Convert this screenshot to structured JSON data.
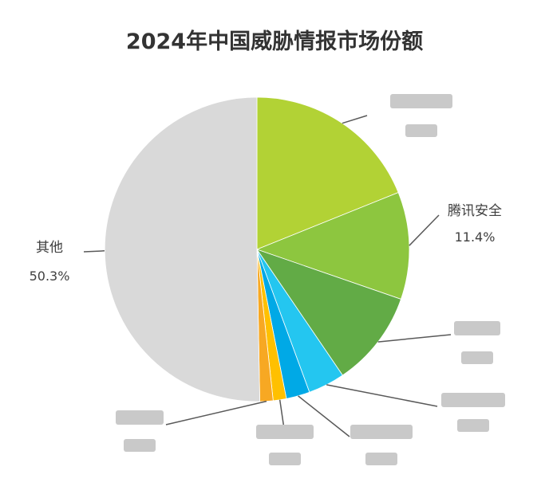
{
  "chart_data": {
    "type": "pie",
    "title": "2024年中国威胁情报市场份额",
    "slices": [
      {
        "label": "",
        "value": 18.9,
        "color": "#b2d235",
        "display": "",
        "obscured": true
      },
      {
        "label": "腾讯安全",
        "value": 11.4,
        "color": "#8dc63f",
        "display": "11.4%",
        "obscured": false
      },
      {
        "label": "",
        "value": 10.2,
        "color": "#62ab46",
        "display": "",
        "obscured": true
      },
      {
        "label": "",
        "value": 3.9,
        "color": "#24c6f0",
        "display": "",
        "obscured": true
      },
      {
        "label": "",
        "value": 2.5,
        "color": "#00a9e6",
        "display": "",
        "obscured": true
      },
      {
        "label": "",
        "value": 1.4,
        "color": "#ffc000",
        "display": "",
        "obscured": true
      },
      {
        "label": "",
        "value": 1.4,
        "color": "#f7a823",
        "display": "",
        "obscured": true
      },
      {
        "label": "其他",
        "value": 50.3,
        "color": "#d9d9d9",
        "display": "50.3%",
        "obscured": false
      }
    ],
    "start_angle": "12 o'clock",
    "direction": "clockwise",
    "legend": "none"
  }
}
